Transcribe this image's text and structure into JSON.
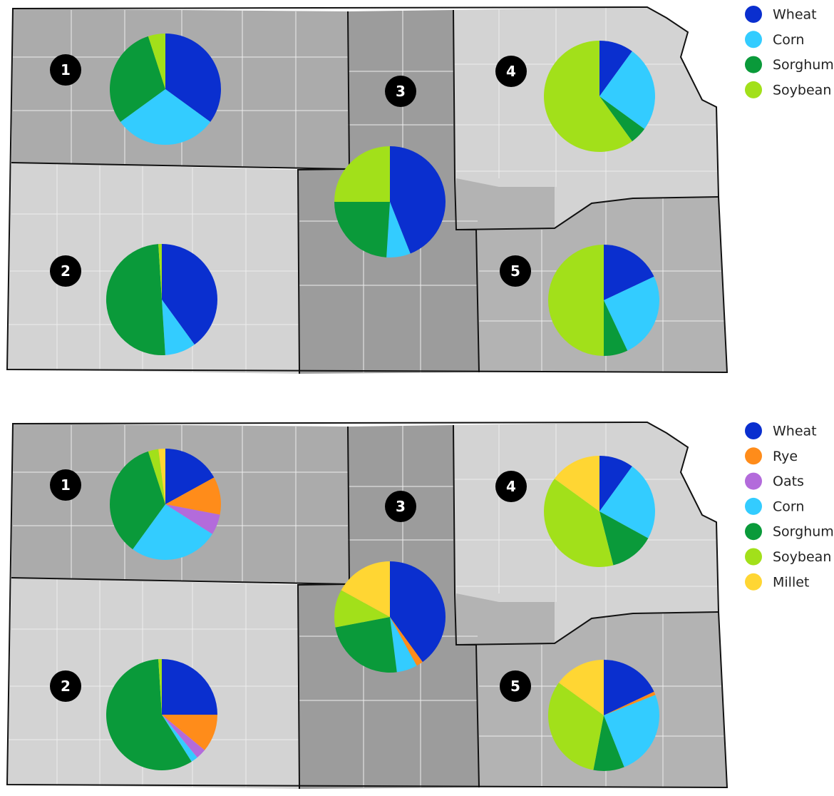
{
  "maps": [
    {
      "legend": [
        {
          "name": "Wheat",
          "color": "#0a2fcf"
        },
        {
          "name": "Corn",
          "color": "#33ccff"
        },
        {
          "name": "Sorghum",
          "color": "#0a9a3a"
        },
        {
          "name": "Soybean",
          "color": "#a2e01a"
        }
      ],
      "regions": [
        {
          "label": "1",
          "values": [
            35,
            30,
            30,
            5
          ]
        },
        {
          "label": "2",
          "values": [
            40,
            9,
            50,
            1
          ]
        },
        {
          "label": "3",
          "values": [
            44,
            7,
            24,
            25
          ]
        },
        {
          "label": "4",
          "values": [
            10,
            25,
            5,
            60
          ]
        },
        {
          "label": "5",
          "values": [
            18,
            25,
            7,
            50
          ]
        }
      ]
    },
    {
      "legend": [
        {
          "name": "Wheat",
          "color": "#0a2fcf"
        },
        {
          "name": "Rye",
          "color": "#ff8c1a"
        },
        {
          "name": "Oats",
          "color": "#b36bdb"
        },
        {
          "name": "Corn",
          "color": "#33ccff"
        },
        {
          "name": "Sorghum",
          "color": "#0a9a3a"
        },
        {
          "name": "Soybean",
          "color": "#a2e01a"
        },
        {
          "name": "Millet",
          "color": "#ffd633"
        }
      ],
      "regions": [
        {
          "label": "1",
          "values": [
            17,
            11,
            6,
            26,
            35,
            3,
            2
          ]
        },
        {
          "label": "2",
          "values": [
            25,
            11,
            3,
            2,
            58,
            1,
            0
          ]
        },
        {
          "label": "3",
          "values": [
            40,
            2,
            0,
            6,
            24,
            11,
            17
          ]
        },
        {
          "label": "4",
          "values": [
            10,
            0,
            0,
            23,
            13,
            39,
            15
          ]
        },
        {
          "label": "5",
          "values": [
            18,
            1,
            0,
            25,
            9,
            32,
            15
          ]
        }
      ]
    }
  ]
}
